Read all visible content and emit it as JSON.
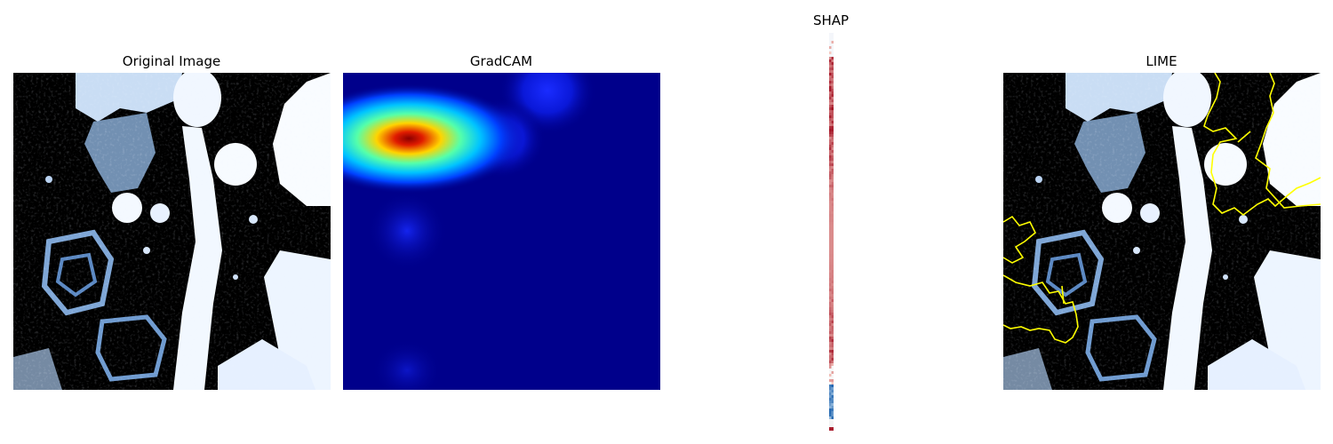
{
  "panels": {
    "original": {
      "title": "Original Image"
    },
    "gradcam": {
      "title": "GradCAM"
    },
    "shap": {
      "title": "SHAP"
    },
    "lime": {
      "title": "LIME"
    }
  },
  "colors": {
    "ct_base": "#000000",
    "ct_tissue": "#dbeafb",
    "gradcam_background": "#00008b",
    "gradcam_hot": "#b40000",
    "lime_boundary": "#ffff00",
    "shap_positive": "#b2182b",
    "shap_negative": "#2166ac"
  }
}
